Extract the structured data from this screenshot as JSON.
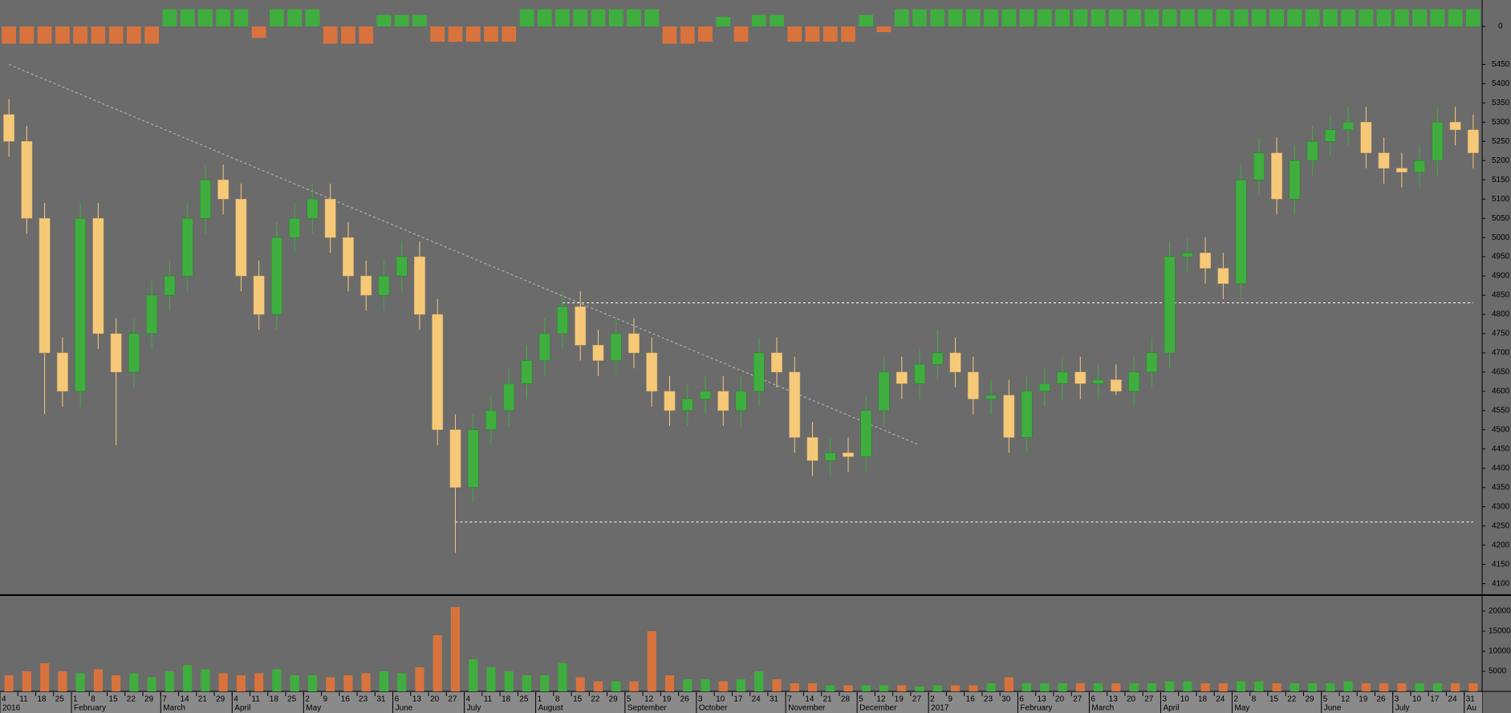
{
  "chart_data": {
    "type": "candlestick",
    "categories": [
      "4",
      "11",
      "18",
      "25",
      "1",
      "8",
      "15",
      "22",
      "29",
      "7",
      "14",
      "21",
      "29",
      "4",
      "11",
      "18",
      "25",
      "2",
      "9",
      "16",
      "23",
      "31",
      "6",
      "13",
      "20",
      "27",
      "4",
      "11",
      "18",
      "25",
      "1",
      "8",
      "15",
      "22",
      "29",
      "5",
      "12",
      "19",
      "26",
      "3",
      "10",
      "17",
      "24",
      "31",
      "7",
      "14",
      "21",
      "28",
      "5",
      "12",
      "19",
      "27",
      "2",
      "9",
      "16",
      "23",
      "30",
      "6",
      "13",
      "20",
      "27",
      "6",
      "13",
      "20",
      "27",
      "3",
      "10",
      "18",
      "24",
      "2",
      "8",
      "15",
      "22",
      "29",
      "5",
      "12",
      "19",
      "26",
      "3",
      "10",
      "17",
      "24",
      "31"
    ],
    "months": [
      "2016",
      null,
      null,
      null,
      "February",
      null,
      null,
      null,
      null,
      "March",
      null,
      null,
      null,
      "April",
      null,
      null,
      null,
      "May",
      null,
      null,
      null,
      null,
      "June",
      null,
      null,
      null,
      "July",
      null,
      null,
      null,
      "August",
      null,
      null,
      null,
      null,
      "September",
      null,
      null,
      null,
      "October",
      null,
      null,
      null,
      null,
      "November",
      null,
      null,
      null,
      "December",
      null,
      null,
      null,
      "2017",
      null,
      null,
      null,
      null,
      "February",
      null,
      null,
      null,
      "March",
      null,
      null,
      null,
      "April",
      null,
      null,
      null,
      "May",
      null,
      null,
      null,
      null,
      "June",
      null,
      null,
      null,
      "July",
      null,
      null,
      null,
      "Au"
    ],
    "open": [
      5320,
      5250,
      5050,
      4700,
      4600,
      5050,
      4750,
      4650,
      4750,
      4850,
      4900,
      5050,
      5150,
      5100,
      4900,
      4800,
      5000,
      5050,
      5100,
      5000,
      4900,
      4850,
      4900,
      4950,
      4800,
      4500,
      4350,
      4500,
      4550,
      4620,
      4680,
      4750,
      4820,
      4720,
      4680,
      4750,
      4700,
      4600,
      4550,
      4580,
      4600,
      4550,
      4600,
      4700,
      4650,
      4480,
      4420,
      4440,
      4430,
      4550,
      4650,
      4620,
      4670,
      4700,
      4650,
      4580,
      4590,
      4480,
      4600,
      4620,
      4650,
      4620,
      4630,
      4600,
      4650,
      4700,
      4950,
      4960,
      4920,
      4880,
      5150,
      5220,
      5100,
      5200,
      5250,
      5280,
      5300,
      5220,
      5180,
      5170,
      5200,
      5300,
      5280
    ],
    "high": [
      5360,
      5290,
      5090,
      4740,
      5090,
      5090,
      4790,
      4790,
      4890,
      4940,
      5090,
      5190,
      5190,
      5140,
      4940,
      5040,
      5090,
      5140,
      5140,
      5040,
      4940,
      4940,
      4990,
      4990,
      4840,
      4540,
      4540,
      4590,
      4660,
      4720,
      4790,
      4860,
      4860,
      4760,
      4790,
      4790,
      4740,
      4640,
      4620,
      4640,
      4640,
      4640,
      4740,
      4740,
      4690,
      4520,
      4480,
      4480,
      4590,
      4690,
      4690,
      4710,
      4760,
      4740,
      4690,
      4630,
      4630,
      4640,
      4660,
      4690,
      4690,
      4670,
      4670,
      4690,
      4740,
      4990,
      5000,
      5000,
      4960,
      5190,
      5260,
      5260,
      5240,
      5290,
      5320,
      5340,
      5340,
      5260,
      5220,
      5240,
      5340,
      5340,
      5320
    ],
    "low": [
      5210,
      5010,
      4540,
      4560,
      4560,
      4710,
      4460,
      4610,
      4710,
      4810,
      4860,
      5010,
      5060,
      4860,
      4760,
      4760,
      4960,
      5010,
      4960,
      4860,
      4810,
      4810,
      4860,
      4760,
      4460,
      4180,
      4310,
      4460,
      4510,
      4580,
      4640,
      4710,
      4680,
      4640,
      4640,
      4660,
      4560,
      4510,
      4510,
      4540,
      4510,
      4510,
      4560,
      4610,
      4440,
      4380,
      4380,
      4390,
      4390,
      4510,
      4580,
      4580,
      4630,
      4610,
      4540,
      4540,
      4440,
      4440,
      4560,
      4580,
      4580,
      4580,
      4590,
      4560,
      4610,
      4660,
      4910,
      4880,
      4840,
      4840,
      5110,
      5060,
      5060,
      5160,
      5210,
      5240,
      5180,
      5140,
      5130,
      5130,
      5160,
      5240,
      5180
    ],
    "close": [
      5250,
      5050,
      4700,
      4600,
      5050,
      4750,
      4650,
      4750,
      4850,
      4900,
      5050,
      5150,
      5100,
      4900,
      4800,
      5000,
      5050,
      5100,
      5000,
      4900,
      4850,
      4900,
      4950,
      4800,
      4500,
      4350,
      4500,
      4550,
      4620,
      4680,
      4750,
      4820,
      4720,
      4680,
      4750,
      4700,
      4600,
      4550,
      4580,
      4600,
      4550,
      4600,
      4700,
      4650,
      4480,
      4420,
      4440,
      4430,
      4550,
      4650,
      4620,
      4670,
      4700,
      4650,
      4580,
      4590,
      4480,
      4600,
      4620,
      4650,
      4620,
      4630,
      4600,
      4650,
      4700,
      4950,
      4960,
      4920,
      4880,
      5150,
      5220,
      5100,
      5200,
      5250,
      5280,
      5300,
      5220,
      5180,
      5170,
      5200,
      5300,
      5280,
      5220
    ],
    "up_color": "#3fae3f",
    "down_color": "#f6c979",
    "ylim": [
      4070,
      5480
    ],
    "yticks": [
      4100,
      4150,
      4200,
      4250,
      4300,
      4350,
      4400,
      4450,
      4500,
      4550,
      4600,
      4650,
      4700,
      4750,
      4800,
      4850,
      4900,
      4950,
      5000,
      5050,
      5100,
      5150,
      5200,
      5250,
      5300,
      5350,
      5400,
      5450
    ],
    "trendlines": [
      {
        "start": 0,
        "end": 51,
        "from": 5450,
        "to": 4460
      },
      {
        "start": 31,
        "end": 82,
        "from": 4830,
        "to": 4830
      },
      {
        "start": 25,
        "end": 82,
        "from": 4260,
        "to": 4260
      }
    ],
    "volume": {
      "values": [
        4000,
        5000,
        7000,
        5000,
        4500,
        5500,
        4000,
        4500,
        3500,
        5000,
        6500,
        5500,
        4500,
        4000,
        4500,
        5500,
        4000,
        4000,
        3500,
        4000,
        4500,
        5000,
        4500,
        6000,
        14000,
        21000,
        8000,
        6000,
        5000,
        4000,
        4000,
        7000,
        3500,
        2500,
        2500,
        2500,
        15000,
        4000,
        3000,
        3000,
        2500,
        3000,
        5000,
        3000,
        2000,
        2000,
        1500,
        1500,
        1500,
        1500,
        1500,
        1200,
        1500,
        1500,
        1500,
        2000,
        3500,
        2000,
        2000,
        2000,
        2000,
        2000,
        2000,
        2000,
        2000,
        2500,
        2500,
        2000,
        2000,
        2500,
        2500,
        2000,
        2000,
        2000,
        2000,
        2500,
        2000,
        2000,
        2000,
        2000,
        2000,
        2000,
        2000
      ],
      "ylim": [
        0,
        24000
      ],
      "yticks": [
        5000,
        10000,
        15000,
        20000
      ],
      "up_color": "#3fae3f",
      "down_color": "#d8733d"
    },
    "indicator": {
      "values": [
        -0.9,
        -0.9,
        -0.9,
        -0.9,
        -0.9,
        -0.9,
        -0.9,
        -0.9,
        -0.9,
        0.9,
        0.9,
        0.9,
        0.9,
        0.9,
        -0.6,
        0.9,
        0.9,
        0.9,
        -0.9,
        -0.9,
        -0.9,
        0.6,
        0.6,
        0.6,
        -0.8,
        -0.8,
        -0.8,
        -0.8,
        -0.8,
        0.9,
        0.9,
        0.9,
        0.9,
        0.9,
        0.9,
        0.9,
        0.9,
        -0.9,
        -0.9,
        -0.8,
        0.5,
        -0.8,
        0.6,
        0.6,
        -0.8,
        -0.8,
        -0.8,
        -0.8,
        0.6,
        -0.3,
        0.9,
        0.9,
        0.9,
        0.9,
        0.9,
        0.9,
        0.9,
        0.9,
        0.9,
        0.9,
        0.9,
        0.9,
        0.9,
        0.9,
        0.9,
        0.9,
        0.9,
        0.9,
        0.9,
        0.9,
        0.9,
        0.9,
        0.9,
        0.9,
        0.9,
        0.9,
        0.9,
        0.9,
        0.9,
        0.9,
        0.9,
        0.9,
        0.9
      ],
      "ylim": [
        -1.3,
        1.3
      ],
      "yticks": [
        0
      ],
      "up_color": "#3fae3f",
      "down_color": "#d8733d"
    }
  }
}
